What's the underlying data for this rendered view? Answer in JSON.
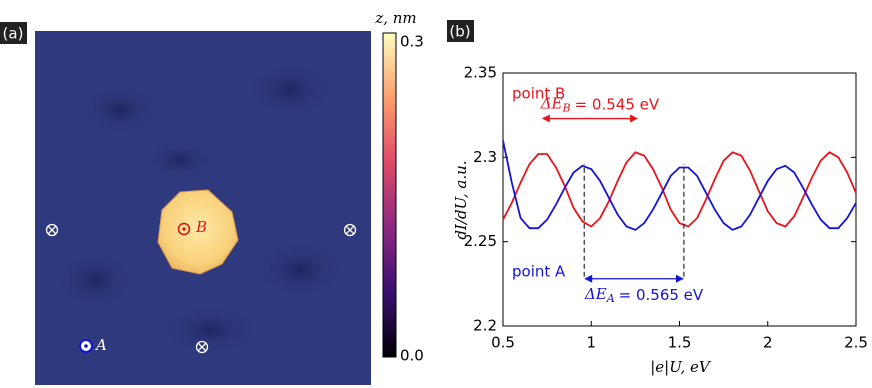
{
  "chart_data": [
    {
      "type": "image",
      "panel_label": "(a)",
      "colorbar_title": "z, nm",
      "colorbar_lim": [
        0,
        0.3
      ],
      "colorbar_ticks": [
        {
          "value": 0,
          "label": "0.0"
        },
        0.3
      ],
      "colorbar_colors": [
        "#000004",
        "#3b0f70",
        "#8c2981",
        "#de4968",
        "#fe9f6d",
        "#fcfdbf"
      ],
      "points": [
        {
          "label": "A"
        },
        {
          "label": "B"
        }
      ]
    },
    {
      "type": "line",
      "panel_label": "(b)",
      "xlabel": "|e|U, eV",
      "ylabel": "dI/dU, a.u.",
      "xlim": [
        0.5,
        2.5
      ],
      "ylim": [
        2.2,
        2.35
      ],
      "xticks": [
        0.5,
        1,
        1.5,
        2,
        2.5
      ],
      "yticks": [
        {
          "value": 2.2,
          "label": "2.2"
        },
        2.25,
        {
          "value": 2.3,
          "label": "2.3"
        },
        2.35
      ],
      "x": [
        0.5,
        0.55,
        0.6,
        0.65,
        0.7,
        0.75,
        0.8,
        0.85,
        0.9,
        0.95,
        1.0,
        1.05,
        1.1,
        1.15,
        1.2,
        1.25,
        1.3,
        1.35,
        1.4,
        1.45,
        1.5,
        1.55,
        1.6,
        1.65,
        1.7,
        1.75,
        1.8,
        1.85,
        1.9,
        1.95,
        2.0,
        2.05,
        2.1,
        2.15,
        2.2,
        2.25,
        2.3,
        2.35,
        2.4,
        2.45,
        2.5
      ],
      "series": [
        {
          "name": "point B",
          "color": "#e8141c",
          "values": [
            2.263,
            2.273,
            2.285,
            2.296,
            2.302,
            2.302,
            2.294,
            2.283,
            2.27,
            2.262,
            2.259,
            2.264,
            2.274,
            2.286,
            2.297,
            2.303,
            2.301,
            2.293,
            2.282,
            2.269,
            2.261,
            2.259,
            2.264,
            2.275,
            2.287,
            2.298,
            2.303,
            2.301,
            2.292,
            2.28,
            2.268,
            2.261,
            2.259,
            2.265,
            2.276,
            2.288,
            2.298,
            2.303,
            2.3,
            2.291,
            2.279
          ]
        },
        {
          "name": "point A",
          "color": "#1414d8",
          "values": [
            2.31,
            2.285,
            2.264,
            2.258,
            2.258,
            2.263,
            2.272,
            2.282,
            2.291,
            2.295,
            2.293,
            2.286,
            2.276,
            2.266,
            2.259,
            2.257,
            2.261,
            2.269,
            2.279,
            2.289,
            2.294,
            2.294,
            2.289,
            2.279,
            2.269,
            2.261,
            2.257,
            2.259,
            2.266,
            2.276,
            2.286,
            2.293,
            2.295,
            2.291,
            2.282,
            2.272,
            2.263,
            2.258,
            2.258,
            2.264,
            2.273
          ]
        }
      ],
      "annotations": [
        {
          "color": "#e8141c",
          "label": "ΔE",
          "sub": "B",
          "text": "= 0.545 eV",
          "x": [
            0.72,
            1.265
          ],
          "y": 2.323
        },
        {
          "color": "#1414d8",
          "label": "ΔE",
          "sub": "A",
          "text": "= 0.565 eV",
          "x": [
            0.96,
            1.525
          ],
          "y": 2.228
        }
      ]
    }
  ]
}
